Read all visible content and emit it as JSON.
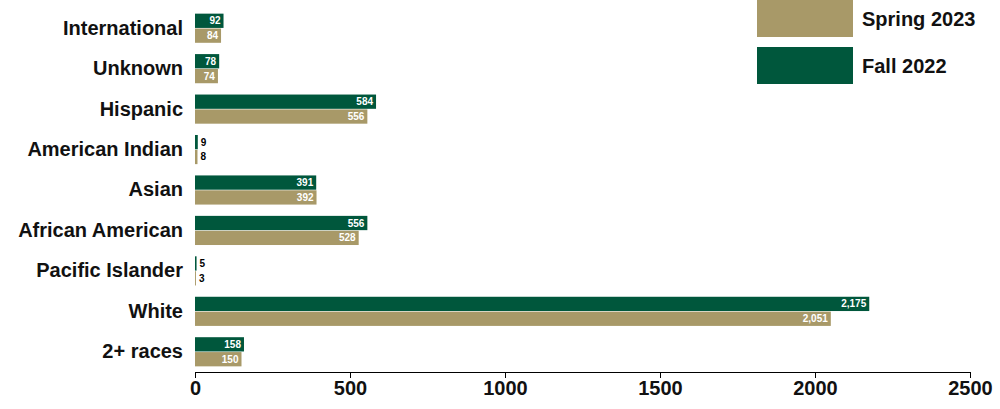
{
  "chart_data": {
    "type": "bar",
    "orientation": "horizontal",
    "categories": [
      "International",
      "Unknown",
      "Hispanic",
      "American Indian",
      "Asian",
      "African American",
      "Pacific Islander",
      "White",
      "2+ races"
    ],
    "series": [
      {
        "name": "Fall 2022",
        "color": "#00573c",
        "values": [
          92,
          78,
          584,
          9,
          391,
          556,
          5,
          2175,
          158
        ],
        "value_labels": [
          "92",
          "78",
          "584",
          "9",
          "391",
          "556",
          "5",
          "2,175",
          "158"
        ]
      },
      {
        "name": "Spring 2023",
        "color": "#a89968",
        "values": [
          84,
          74,
          556,
          8,
          392,
          528,
          3,
          2051,
          150
        ],
        "value_labels": [
          "84",
          "74",
          "556",
          "8",
          "392",
          "528",
          "3",
          "2,051",
          "150"
        ]
      }
    ],
    "xlim": [
      0,
      2500
    ],
    "xticks": [
      0,
      500,
      1000,
      1500,
      2000,
      2500
    ],
    "data_labels": true,
    "grid": false,
    "legend": "upper right"
  }
}
